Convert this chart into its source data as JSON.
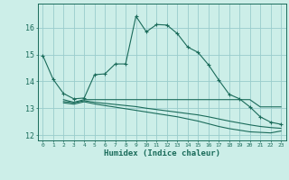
{
  "xlabel": "Humidex (Indice chaleur)",
  "bg_color": "#cceee8",
  "grid_color": "#99cccc",
  "line_color": "#1a6b5a",
  "xlim": [
    -0.5,
    23.5
  ],
  "ylim": [
    11.8,
    16.9
  ],
  "xticks": [
    0,
    1,
    2,
    3,
    4,
    5,
    6,
    7,
    8,
    9,
    10,
    11,
    12,
    13,
    14,
    15,
    16,
    17,
    18,
    19,
    20,
    21,
    22,
    23
  ],
  "yticks": [
    12,
    13,
    14,
    15,
    16
  ],
  "line1_x": [
    0,
    1,
    2,
    3,
    4,
    5,
    6,
    7,
    8,
    9,
    10,
    11,
    12,
    13,
    14,
    15,
    16,
    17,
    18,
    19,
    20,
    21,
    22,
    23
  ],
  "line1_y": [
    14.97,
    14.08,
    13.55,
    13.35,
    13.38,
    14.25,
    14.28,
    14.65,
    14.65,
    16.43,
    15.85,
    16.12,
    16.1,
    15.78,
    15.28,
    15.08,
    14.62,
    14.05,
    13.52,
    13.35,
    13.05,
    12.68,
    12.48,
    12.4
  ],
  "line2_x": [
    2,
    3,
    4,
    5,
    6,
    7,
    8,
    9,
    10,
    11,
    12,
    13,
    14,
    15,
    16,
    17,
    18,
    19,
    20,
    21,
    22,
    23
  ],
  "line2_y": [
    13.32,
    13.22,
    13.32,
    13.32,
    13.32,
    13.32,
    13.32,
    13.32,
    13.32,
    13.32,
    13.32,
    13.32,
    13.32,
    13.32,
    13.32,
    13.32,
    13.32,
    13.32,
    13.32,
    13.05,
    13.05,
    13.05
  ],
  "line3_x": [
    2,
    3,
    4,
    5,
    6,
    7,
    8,
    9,
    10,
    11,
    12,
    13,
    14,
    15,
    16,
    17,
    18,
    19,
    20,
    21,
    22,
    23
  ],
  "line3_y": [
    13.25,
    13.2,
    13.28,
    13.22,
    13.18,
    13.14,
    13.1,
    13.06,
    13.0,
    12.95,
    12.9,
    12.85,
    12.8,
    12.75,
    12.68,
    12.6,
    12.52,
    12.45,
    12.38,
    12.32,
    12.28,
    12.25
  ],
  "line4_x": [
    2,
    3,
    4,
    5,
    6,
    7,
    8,
    9,
    10,
    11,
    12,
    13,
    14,
    15,
    16,
    17,
    18,
    19,
    20,
    21,
    22,
    23
  ],
  "line4_y": [
    13.2,
    13.15,
    13.24,
    13.16,
    13.1,
    13.04,
    12.98,
    12.92,
    12.86,
    12.8,
    12.74,
    12.68,
    12.6,
    12.52,
    12.42,
    12.32,
    12.24,
    12.18,
    12.12,
    12.1,
    12.08,
    12.15
  ]
}
